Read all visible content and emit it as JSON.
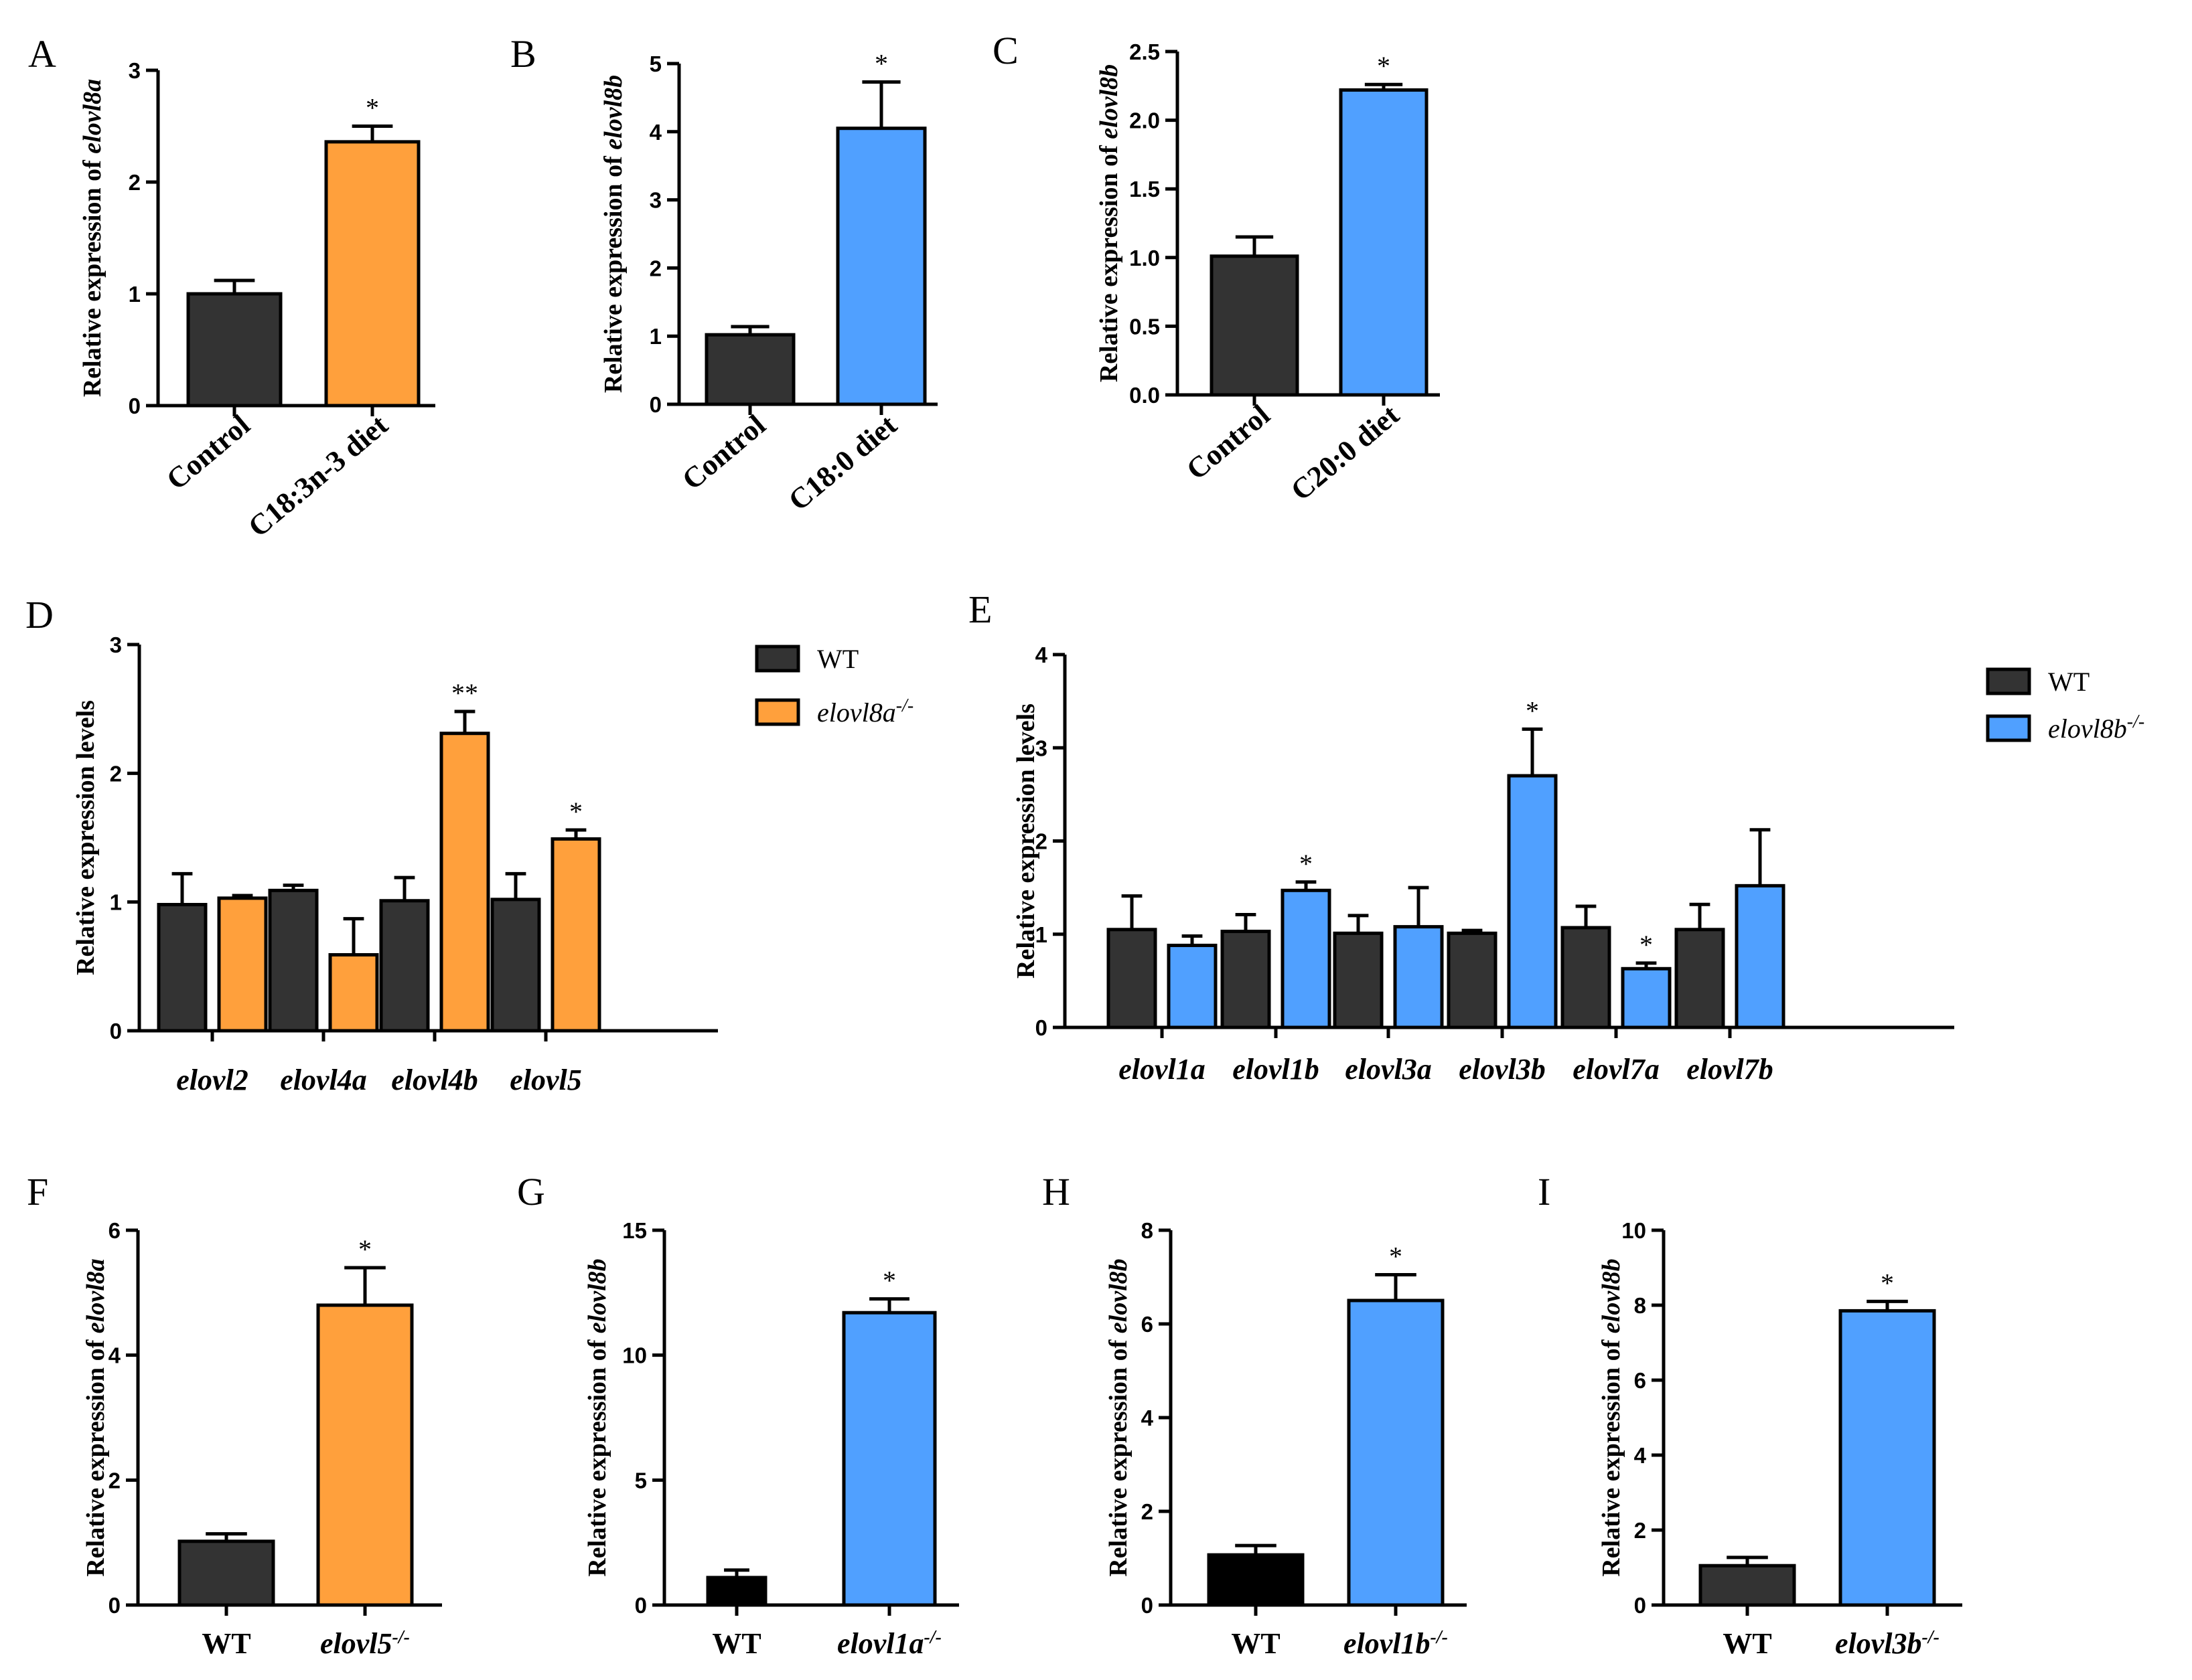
{
  "colors": {
    "control": "#333333",
    "wt_black": "#000000",
    "orange": "#ffa03c",
    "blue": "#50a0ff"
  },
  "chart_data": [
    {
      "id": "A",
      "panel_label": "A",
      "type": "bar",
      "ylabel_prefix": "Relative expression of ",
      "ylabel_gene": "elovl8a",
      "ylim": [
        0,
        3
      ],
      "yticks": [
        0,
        1,
        2,
        3
      ],
      "rotate_labels": true,
      "categories": [
        {
          "label": "Control",
          "italic": false,
          "value": 1.0,
          "error": 0.12,
          "color": "#333333",
          "sig": ""
        },
        {
          "label": "C18:3n-3 diet",
          "italic": false,
          "value": 2.36,
          "error": 0.14,
          "color": "#ffa03c",
          "sig": "*"
        }
      ]
    },
    {
      "id": "B",
      "panel_label": "B",
      "type": "bar",
      "ylabel_prefix": "Relative expression of ",
      "ylabel_gene": "elovl8b",
      "ylim": [
        0,
        5
      ],
      "yticks": [
        0,
        1,
        2,
        3,
        4,
        5
      ],
      "rotate_labels": true,
      "categories": [
        {
          "label": "Control",
          "italic": false,
          "value": 1.02,
          "error": 0.12,
          "color": "#333333",
          "sig": ""
        },
        {
          "label": "C18:0 diet",
          "italic": false,
          "value": 4.05,
          "error": 0.68,
          "color": "#50a0ff",
          "sig": "*"
        }
      ]
    },
    {
      "id": "C",
      "panel_label": "C",
      "type": "bar",
      "ylabel_prefix": "Relative expression of ",
      "ylabel_gene": "elovl8b",
      "ylim": [
        0,
        2.5
      ],
      "yticks": [
        "0.0",
        "0.5",
        "1.0",
        "1.5",
        "2.0",
        "2.5"
      ],
      "rotate_labels": true,
      "categories": [
        {
          "label": "Control",
          "italic": false,
          "value": 1.01,
          "error": 0.14,
          "color": "#333333",
          "sig": ""
        },
        {
          "label": "C20:0 diet",
          "italic": false,
          "value": 2.22,
          "error": 0.04,
          "color": "#50a0ff",
          "sig": "*"
        }
      ]
    },
    {
      "id": "D",
      "panel_label": "D",
      "type": "grouped_bar",
      "ylabel_plain": "Relative expression levels",
      "ylim": [
        0,
        3
      ],
      "yticks": [
        0,
        1,
        2,
        3
      ],
      "legend": [
        {
          "label": "WT",
          "italic": false,
          "color": "#333333"
        },
        {
          "label": "elovl8a",
          "sup": "-/-",
          "italic": true,
          "color": "#ffa03c"
        }
      ],
      "groups": [
        {
          "label": "elovl2",
          "values": [
            0.98,
            1.03
          ],
          "errors": [
            0.24,
            0.02
          ],
          "sig": [
            "",
            ""
          ]
        },
        {
          "label": "elovl4a",
          "values": [
            1.09,
            0.59
          ],
          "errors": [
            0.04,
            0.28
          ],
          "sig": [
            "",
            ""
          ]
        },
        {
          "label": "elovl4b",
          "values": [
            1.01,
            2.31
          ],
          "errors": [
            0.18,
            0.17
          ],
          "sig": [
            "",
            "**"
          ]
        },
        {
          "label": "elovl5",
          "values": [
            1.02,
            1.49
          ],
          "errors": [
            0.2,
            0.07
          ],
          "sig": [
            "",
            "*"
          ]
        }
      ]
    },
    {
      "id": "E",
      "panel_label": "E",
      "type": "grouped_bar",
      "ylabel_plain": "Relative expression levels",
      "ylim": [
        0,
        4
      ],
      "yticks": [
        0,
        1,
        2,
        3,
        4
      ],
      "legend": [
        {
          "label": "WT",
          "italic": false,
          "color": "#333333"
        },
        {
          "label": "elovl8b",
          "sup": "-/-",
          "italic": true,
          "color": "#50a0ff"
        }
      ],
      "groups": [
        {
          "label": "elovl1a",
          "values": [
            1.05,
            0.88
          ],
          "errors": [
            0.36,
            0.1
          ],
          "sig": [
            "",
            ""
          ]
        },
        {
          "label": "elovl1b",
          "values": [
            1.03,
            1.47
          ],
          "errors": [
            0.18,
            0.09
          ],
          "sig": [
            "",
            "*"
          ]
        },
        {
          "label": "elovl3a",
          "values": [
            1.01,
            1.08
          ],
          "errors": [
            0.19,
            0.42
          ],
          "sig": [
            "",
            ""
          ]
        },
        {
          "label": "elovl3b",
          "values": [
            1.01,
            2.7
          ],
          "errors": [
            0.03,
            0.5
          ],
          "sig": [
            "",
            "*"
          ]
        },
        {
          "label": "elovl7a",
          "values": [
            1.07,
            0.63
          ],
          "errors": [
            0.23,
            0.06
          ],
          "sig": [
            "",
            "*"
          ]
        },
        {
          "label": "elovl7b",
          "values": [
            1.05,
            1.52
          ],
          "errors": [
            0.27,
            0.6
          ],
          "sig": [
            "",
            ""
          ]
        }
      ]
    },
    {
      "id": "F",
      "panel_label": "F",
      "type": "bar",
      "ylabel_prefix": "Relative expression of ",
      "ylabel_gene": "elovl8a",
      "ylim": [
        0,
        6
      ],
      "yticks": [
        0,
        2,
        4,
        6
      ],
      "rotate_labels": false,
      "categories": [
        {
          "label": "WT",
          "italic": false,
          "value": 1.02,
          "error": 0.12,
          "color": "#333333",
          "sig": ""
        },
        {
          "label": "elovl5",
          "sup": "-/-",
          "italic": true,
          "value": 4.8,
          "error": 0.6,
          "color": "#ffa03c",
          "sig": "*"
        }
      ]
    },
    {
      "id": "G",
      "panel_label": "G",
      "type": "bar",
      "ylabel_prefix": "Relative expression of ",
      "ylabel_gene": "elovl8b",
      "ylim": [
        0,
        15
      ],
      "yticks": [
        0,
        5,
        10,
        15
      ],
      "rotate_labels": false,
      "categories": [
        {
          "label": "WT",
          "italic": false,
          "value": 1.1,
          "error": 0.3,
          "color": "#000000",
          "sig": ""
        },
        {
          "label": "elovl1a",
          "sup": "-/-",
          "italic": true,
          "value": 11.7,
          "error": 0.55,
          "color": "#50a0ff",
          "sig": "*"
        }
      ]
    },
    {
      "id": "H",
      "panel_label": "H",
      "type": "bar",
      "ylabel_prefix": "Relative expression of ",
      "ylabel_gene": "elovl8b",
      "ylim": [
        0,
        8
      ],
      "yticks": [
        0,
        2,
        4,
        6,
        8
      ],
      "rotate_labels": false,
      "categories": [
        {
          "label": "WT",
          "italic": false,
          "value": 1.07,
          "error": 0.2,
          "color": "#000000",
          "sig": ""
        },
        {
          "label": "elovl1b",
          "sup": "-/-",
          "italic": true,
          "value": 6.5,
          "error": 0.55,
          "color": "#50a0ff",
          "sig": "*"
        }
      ]
    },
    {
      "id": "I",
      "panel_label": "I",
      "type": "bar",
      "ylabel_prefix": "Relative expression of ",
      "ylabel_gene": "elovl8b",
      "ylim": [
        0,
        10
      ],
      "yticks": [
        0,
        2,
        4,
        6,
        8,
        10
      ],
      "rotate_labels": false,
      "categories": [
        {
          "label": "WT",
          "italic": false,
          "value": 1.05,
          "error": 0.22,
          "color": "#333333",
          "sig": ""
        },
        {
          "label": "elovl3b",
          "sup": "-/-",
          "italic": true,
          "value": 7.85,
          "error": 0.25,
          "color": "#50a0ff",
          "sig": "*"
        }
      ]
    }
  ]
}
